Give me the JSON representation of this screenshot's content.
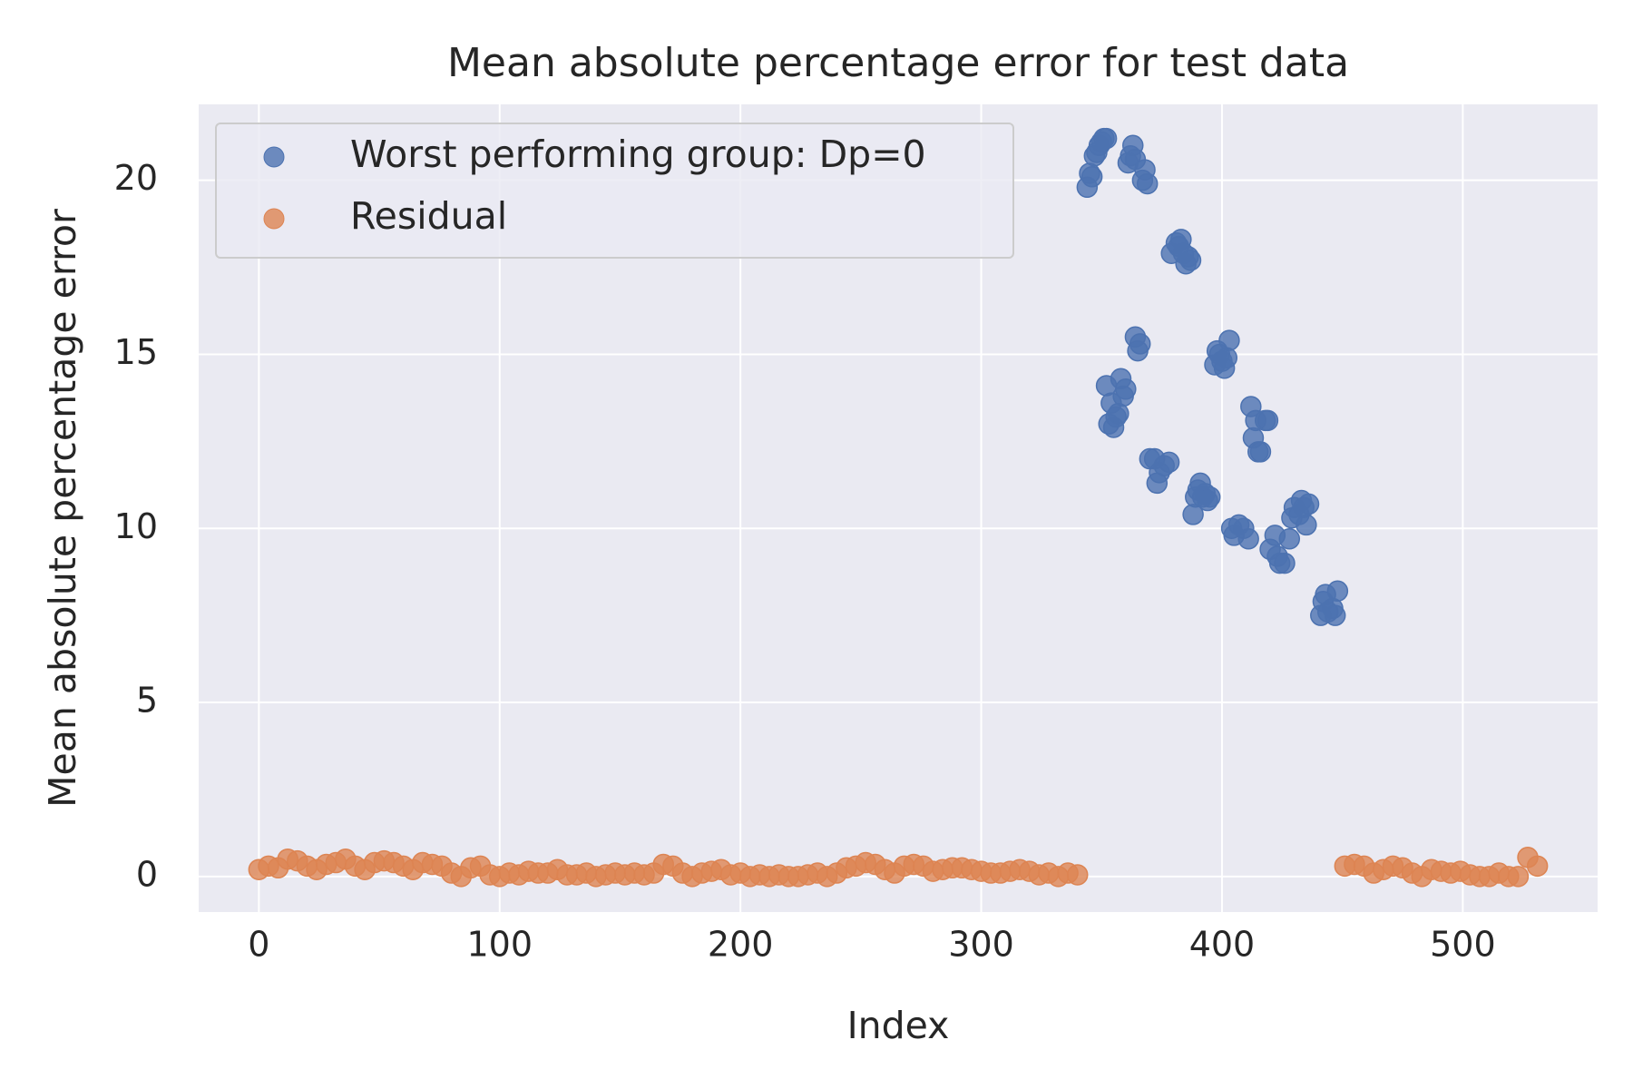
{
  "chart_data": {
    "type": "scatter",
    "title": "Mean absolute percentage error for test data",
    "x_label": "Index",
    "y_label": "Mean absolute percentage error",
    "xlim": [
      -25,
      556
    ],
    "ylim": [
      -1.02,
      22.18
    ],
    "xticks": [
      0,
      100,
      200,
      300,
      400,
      500
    ],
    "yticks": [
      0,
      5,
      10,
      15,
      20
    ],
    "grid": true,
    "legend": "upper left",
    "series": [
      {
        "name": "Worst performing group: Dp=0",
        "color": "#4c72b0",
        "x": [
          344,
          345,
          346,
          347,
          348,
          349,
          350,
          351,
          352,
          352,
          353,
          354,
          355,
          356,
          357,
          358,
          359,
          360,
          361,
          362,
          363,
          364,
          367,
          368,
          369,
          364,
          365,
          366,
          370,
          372,
          373,
          374,
          376,
          378,
          379,
          381,
          382,
          383,
          384,
          385,
          386,
          387,
          388,
          389,
          390,
          391,
          392,
          393,
          394,
          395,
          397,
          398,
          399,
          400,
          401,
          402,
          403,
          404,
          405,
          407,
          409,
          411,
          412,
          413,
          414,
          415,
          416,
          418,
          419,
          420,
          422,
          423,
          424,
          426,
          428,
          429,
          430,
          432,
          433,
          434,
          435,
          436,
          441,
          442,
          443,
          444,
          446,
          447,
          448
        ],
        "values": [
          19.8,
          20.2,
          20.1,
          20.7,
          20.8,
          21.0,
          21.1,
          21.2,
          21.2,
          14.1,
          13.0,
          13.6,
          12.9,
          13.2,
          13.3,
          14.3,
          13.8,
          14.0,
          20.5,
          20.7,
          21.0,
          20.6,
          20.0,
          20.3,
          19.9,
          15.5,
          15.1,
          15.3,
          12.0,
          12.0,
          11.3,
          11.6,
          11.8,
          11.9,
          17.9,
          18.2,
          18.1,
          18.3,
          17.9,
          17.6,
          17.8,
          17.7,
          10.4,
          10.9,
          11.1,
          11.3,
          10.9,
          11.0,
          10.8,
          10.9,
          14.7,
          15.1,
          15.0,
          14.8,
          14.6,
          14.9,
          15.4,
          10.0,
          9.8,
          10.1,
          10.0,
          9.7,
          13.5,
          12.6,
          13.1,
          12.2,
          12.2,
          13.1,
          13.1,
          9.4,
          9.8,
          9.2,
          9.0,
          9.0,
          9.7,
          10.3,
          10.6,
          10.4,
          10.8,
          10.6,
          10.1,
          10.7,
          7.5,
          7.9,
          8.1,
          7.6,
          7.7,
          7.5,
          8.2
        ]
      },
      {
        "name": "Residual",
        "color": "#dd8452",
        "x": [
          0,
          4,
          8,
          12,
          16,
          20,
          24,
          28,
          32,
          36,
          40,
          44,
          48,
          52,
          56,
          60,
          64,
          68,
          72,
          76,
          80,
          84,
          88,
          92,
          96,
          100,
          104,
          108,
          112,
          116,
          120,
          124,
          128,
          132,
          136,
          140,
          144,
          148,
          152,
          156,
          160,
          164,
          168,
          172,
          176,
          180,
          184,
          188,
          192,
          196,
          200,
          204,
          208,
          212,
          216,
          220,
          224,
          228,
          232,
          236,
          240,
          244,
          248,
          252,
          256,
          260,
          264,
          268,
          272,
          276,
          280,
          284,
          288,
          292,
          296,
          300,
          304,
          308,
          312,
          316,
          320,
          324,
          328,
          332,
          336,
          340,
          451,
          455,
          459,
          463,
          467,
          471,
          475,
          479,
          483,
          487,
          491,
          495,
          499,
          503,
          507,
          511,
          515,
          519,
          523,
          527,
          531
        ],
        "values": [
          0.2,
          0.3,
          0.25,
          0.5,
          0.45,
          0.3,
          0.2,
          0.35,
          0.4,
          0.5,
          0.3,
          0.2,
          0.4,
          0.45,
          0.4,
          0.3,
          0.2,
          0.4,
          0.35,
          0.3,
          0.1,
          0.0,
          0.25,
          0.3,
          0.05,
          0.0,
          0.1,
          0.05,
          0.15,
          0.1,
          0.1,
          0.2,
          0.05,
          0.05,
          0.1,
          0.0,
          0.05,
          0.1,
          0.05,
          0.1,
          0.05,
          0.1,
          0.35,
          0.3,
          0.1,
          0.0,
          0.1,
          0.15,
          0.2,
          0.05,
          0.1,
          0.0,
          0.05,
          0.0,
          0.05,
          0.0,
          0.0,
          0.05,
          0.1,
          0.0,
          0.1,
          0.25,
          0.3,
          0.4,
          0.35,
          0.2,
          0.1,
          0.3,
          0.35,
          0.3,
          0.15,
          0.2,
          0.25,
          0.25,
          0.2,
          0.15,
          0.1,
          0.1,
          0.15,
          0.2,
          0.15,
          0.05,
          0.1,
          0.0,
          0.1,
          0.05,
          0.3,
          0.35,
          0.3,
          0.1,
          0.2,
          0.3,
          0.25,
          0.1,
          0.0,
          0.2,
          0.15,
          0.1,
          0.15,
          0.05,
          0.0,
          0.0,
          0.1,
          0.0,
          0.0,
          0.55,
          0.3
        ]
      }
    ]
  }
}
